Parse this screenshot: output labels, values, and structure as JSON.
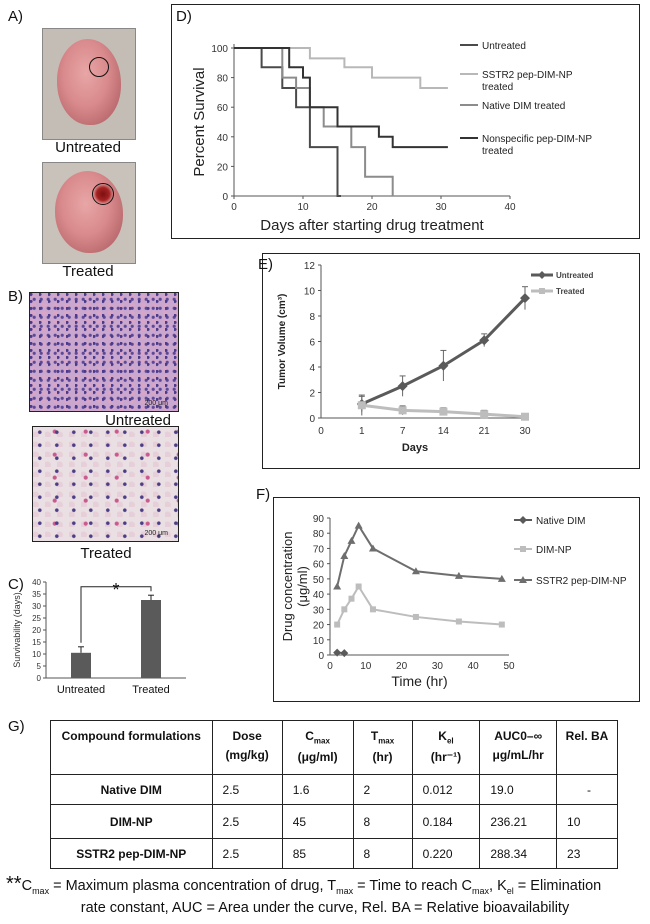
{
  "panels": {
    "a": {
      "label": "A)",
      "top_caption": "Untreated",
      "bottom_caption": "Treated"
    },
    "b": {
      "label": "B)",
      "top_caption": "Untreated",
      "bottom_caption": "Treated",
      "scale": "200 μm"
    },
    "c": {
      "label": "C)"
    },
    "d": {
      "label": "D)"
    },
    "e": {
      "label": "E)"
    },
    "f": {
      "label": "F)"
    },
    "g": {
      "label": "G)"
    }
  },
  "colors": {
    "dark": "#4a4a4a",
    "mid": "#8c8c8c",
    "light": "#b8b8b8",
    "bar": "#5a5a5a",
    "lightsq": "#bdbdbd"
  },
  "chart_data": [
    {
      "id": "C",
      "type": "bar",
      "categories": [
        "Untreated",
        "Treated"
      ],
      "values": [
        10.5,
        32.5
      ],
      "errors": [
        2.5,
        2
      ],
      "ylabel": "Survivability (days)",
      "ylim": [
        0,
        40
      ],
      "yticks": [
        0,
        5,
        10,
        15,
        20,
        25,
        30,
        35,
        40
      ],
      "annotation": "*"
    },
    {
      "id": "D",
      "type": "line",
      "xlabel": "Days after starting drug treatment",
      "ylabel": "Percent Survival",
      "xlim": [
        0,
        40
      ],
      "ylim": [
        0,
        100
      ],
      "xticks": [
        0,
        10,
        20,
        30,
        40
      ],
      "yticks": [
        0,
        20,
        40,
        60,
        80,
        100
      ],
      "series": [
        {
          "name": "Untreated",
          "color": "#4a4a4a",
          "steps": [
            [
              0,
              100
            ],
            [
              4,
              100
            ],
            [
              4,
              87
            ],
            [
              7,
              87
            ],
            [
              7,
              73
            ],
            [
              9,
              73
            ],
            [
              9,
              60
            ],
            [
              11,
              60
            ],
            [
              11,
              33
            ],
            [
              15,
              33
            ],
            [
              15,
              0
            ],
            [
              15.5,
              0
            ]
          ]
        },
        {
          "name": "SSTR2 pep-DIM-NP treated",
          "color": "#b8b8b8",
          "steps": [
            [
              0,
              100
            ],
            [
              11,
              100
            ],
            [
              11,
              93
            ],
            [
              16,
              93
            ],
            [
              16,
              87
            ],
            [
              20,
              87
            ],
            [
              20,
              80
            ],
            [
              27,
              80
            ],
            [
              27,
              73
            ],
            [
              31,
              73
            ]
          ]
        },
        {
          "name": "Native DIM treated",
          "color": "#8c8c8c",
          "steps": [
            [
              0,
              100
            ],
            [
              7,
              100
            ],
            [
              7,
              80
            ],
            [
              9,
              80
            ],
            [
              9,
              73
            ],
            [
              11,
              73
            ],
            [
              11,
              60
            ],
            [
              13,
              60
            ],
            [
              13,
              47
            ],
            [
              17,
              47
            ],
            [
              17,
              33
            ],
            [
              19,
              33
            ],
            [
              19,
              13
            ],
            [
              23,
              13
            ],
            [
              23,
              0
            ]
          ]
        },
        {
          "name": "Nonspecific pep-DIM-NP treated",
          "color": "#333333",
          "steps": [
            [
              0,
              100
            ],
            [
              8,
              100
            ],
            [
              8,
              87
            ],
            [
              10,
              87
            ],
            [
              10,
              80
            ],
            [
              11,
              80
            ],
            [
              11,
              60
            ],
            [
              15,
              60
            ],
            [
              15,
              47
            ],
            [
              21,
              47
            ],
            [
              21,
              40
            ],
            [
              23,
              40
            ],
            [
              23,
              33
            ],
            [
              31,
              33
            ]
          ]
        }
      ]
    },
    {
      "id": "E",
      "type": "line",
      "xlabel": "Days",
      "ylabel": "Tumor Volume (cm³)",
      "categories": [
        "0",
        "1",
        "7",
        "14",
        "21",
        "30"
      ],
      "ylim": [
        0,
        12
      ],
      "yticks": [
        0,
        2,
        4,
        6,
        8,
        10,
        12
      ],
      "series": [
        {
          "name": "Untreated",
          "color": "#5a5a5a",
          "marker": "diamond",
          "x": [
            1,
            2,
            3,
            4,
            5
          ],
          "values": [
            1.1,
            2.5,
            4.1,
            6.1,
            9.4
          ],
          "errors": [
            0.6,
            0.8,
            1.2,
            0.5,
            0.9
          ]
        },
        {
          "name": "Treated",
          "color": "#bdbdbd",
          "marker": "square",
          "x": [
            1,
            2,
            3,
            4,
            5
          ],
          "values": [
            1.0,
            0.6,
            0.5,
            0.3,
            0.1
          ],
          "errors": [
            0.8,
            0.35,
            0.3,
            0.3,
            0.25
          ]
        }
      ]
    },
    {
      "id": "F",
      "type": "line",
      "xlabel": "Time (hr)",
      "ylabel": "Drug concentration (μg/ml)",
      "xlim": [
        0,
        50
      ],
      "ylim": [
        0,
        90
      ],
      "xticks": [
        0,
        10,
        20,
        30,
        40,
        50
      ],
      "yticks": [
        0,
        10,
        20,
        30,
        40,
        50,
        60,
        70,
        80,
        90
      ],
      "series": [
        {
          "name": "Native DIM",
          "color": "#5a5a5a",
          "marker": "diamond",
          "x": [
            2,
            4
          ],
          "values": [
            1.6,
            1.2
          ]
        },
        {
          "name": "DIM-NP",
          "color": "#bdbdbd",
          "marker": "square",
          "x": [
            2,
            4,
            6,
            8,
            12,
            24,
            36,
            48
          ],
          "values": [
            20,
            30,
            37,
            45,
            30,
            25,
            22,
            20
          ]
        },
        {
          "name": "SSTR2 pep-DIM-NP",
          "color": "#6e6e6e",
          "marker": "triangle",
          "x": [
            2,
            4,
            6,
            8,
            12,
            24,
            36,
            48
          ],
          "values": [
            45,
            65,
            75,
            85,
            70,
            55,
            52,
            50
          ]
        }
      ]
    }
  ],
  "table": {
    "headers": [
      {
        "main": "Compound formulations",
        "sub": "",
        "unit": ""
      },
      {
        "main": "Dose",
        "sub": "",
        "unit": "(mg/kg)"
      },
      {
        "main": "C",
        "sub": "max",
        "unit": "(μg/ml)"
      },
      {
        "main": "T",
        "sub": "max",
        "unit": "(hr)"
      },
      {
        "main": "K",
        "sub": "el",
        "unit": "(hr⁻¹)"
      },
      {
        "main": "AUC0–∞",
        "sub": "",
        "unit": "μg/mL/hr"
      },
      {
        "main": "Rel. BA",
        "sub": "",
        "unit": ""
      }
    ],
    "rows": [
      {
        "name": "Native DIM",
        "cells": [
          "2.5",
          "1.6",
          "2",
          "0.012",
          "19.0",
          "-"
        ]
      },
      {
        "name": "DIM-NP",
        "cells": [
          "2.5",
          "45",
          "8",
          "0.184",
          "236.21",
          "10"
        ]
      },
      {
        "name": "SSTR2 pep-DIM-NP",
        "cells": [
          "2.5",
          "85",
          "8",
          "0.220",
          "288.34",
          "23"
        ]
      }
    ]
  },
  "footnote": {
    "stars": "**",
    "c": "C",
    "c_sub": "max",
    "c_text": " = Maximum plasma concentration of drug, ",
    "t": "T",
    "t_sub": "max",
    "t_text": " = Time to reach C",
    "t_sub2": "max",
    "t_text2": ", ",
    "k": "K",
    "k_sub": "el",
    "k_text": " = Elimination",
    "line2": "rate constant,  AUC = Area under the curve, Rel. BA = Relative bioavailability"
  }
}
